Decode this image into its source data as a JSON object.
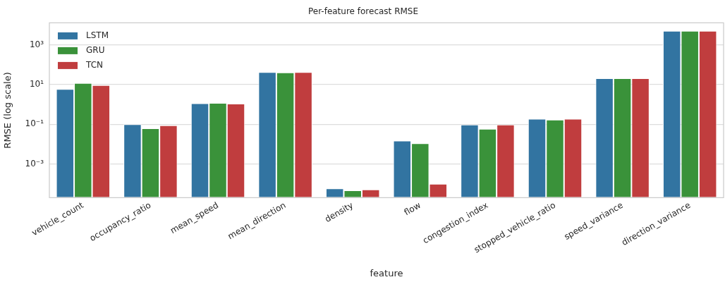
{
  "chart_data": {
    "type": "bar",
    "title": "Per-feature forecast RMSE",
    "xlabel": "feature",
    "ylabel": "RMSE (log scale)",
    "categories": [
      "vehicle_count",
      "occupancy_ratio",
      "mean_speed",
      "mean_direction",
      "density",
      "flow",
      "congestion_index",
      "stopped_vehicle_ratio",
      "speed_variance",
      "direction_variance"
    ],
    "series": [
      {
        "name": "LSTM",
        "color": "#3274a1",
        "values": [
          6,
          0.1,
          1.15,
          43,
          5.9e-05,
          0.015,
          0.097,
          0.19,
          21,
          5100
        ]
      },
      {
        "name": "GRU",
        "color": "#3a923a",
        "values": [
          12,
          0.063,
          1.2,
          41,
          4.7e-05,
          0.011,
          0.059,
          0.17,
          21,
          5100
        ]
      },
      {
        "name": "TCN",
        "color": "#c03d3e",
        "values": [
          9.4,
          0.09,
          1.1,
          43,
          5.2e-05,
          0.0001,
          0.097,
          0.19,
          21,
          5100
        ]
      }
    ],
    "log": true,
    "ylim": [
      2e-05,
      13000
    ],
    "yticks": [
      {
        "value": 0.001,
        "label": "10⁻³"
      },
      {
        "value": 0.1,
        "label": "10⁻¹"
      },
      {
        "value": 10,
        "label": "10¹"
      },
      {
        "value": 1000,
        "label": "10³"
      }
    ],
    "grid": "y",
    "legend": "top left"
  }
}
